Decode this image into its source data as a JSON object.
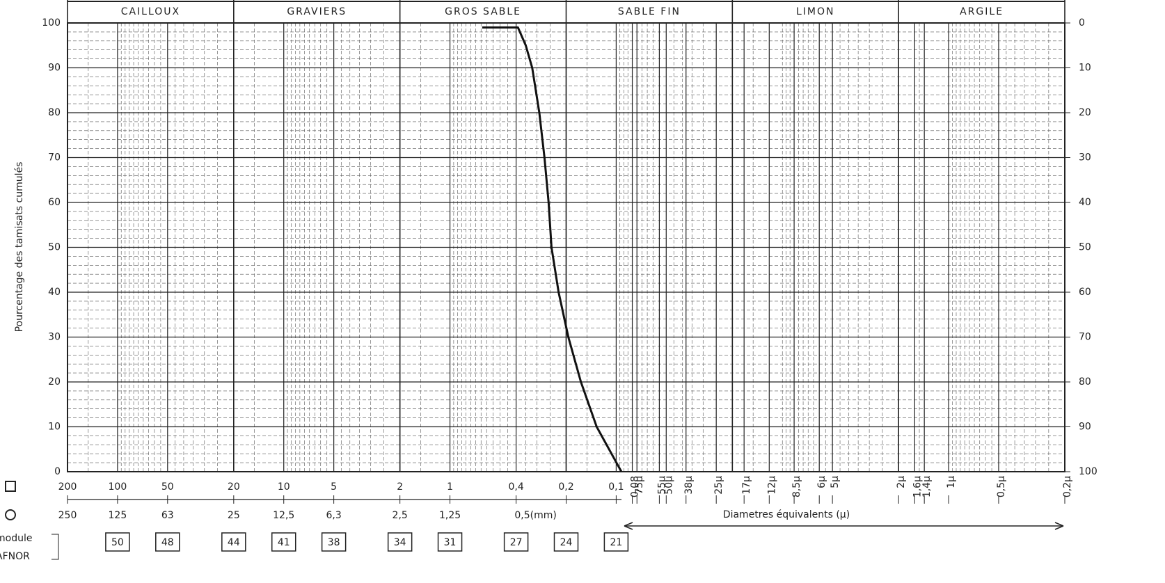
{
  "chart_data": {
    "type": "line",
    "y_label": "Pourcentage des tamisats cumulés",
    "x_label": "Diametres équivalents (µ)",
    "zones": [
      "CAILLOUX",
      "GRAVIERS",
      "GROS SABLE",
      "SABLE FIN",
      "LIMON",
      "ARGILE"
    ],
    "zone_bounds": [
      200,
      20,
      2,
      0.2,
      0.02,
      0.002,
      0.0002
    ],
    "x_scale": "log",
    "xlim": [
      200,
      0.0002
    ],
    "xticks": [
      200,
      100,
      50,
      20,
      10,
      5,
      2,
      1,
      {
        "value": 0.4,
        "label": "0,4"
      },
      {
        "value": 0.2,
        "label": "0,2"
      },
      {
        "value": 0.1,
        "label": "0,1"
      },
      {
        "value": 0.08,
        "label": "0,08"
      },
      {
        "value": 0.075,
        "label": "75µ"
      },
      {
        "value": 0.055,
        "label": "55µ"
      },
      {
        "value": 0.05,
        "label": "50µ"
      },
      {
        "value": 0.038,
        "label": "38µ"
      },
      {
        "value": 0.025,
        "label": "25µ"
      },
      {
        "value": 0.017,
        "label": "17µ"
      },
      {
        "value": 0.012,
        "label": "12µ"
      },
      {
        "value": 0.0085,
        "label": "8,5µ"
      },
      {
        "value": 0.006,
        "label": "6µ"
      },
      {
        "value": 0.005,
        "label": "5µ"
      },
      {
        "value": 0.002,
        "label": "2µ"
      },
      {
        "value": 0.0016,
        "label": "1,6µ"
      },
      {
        "value": 0.0014,
        "label": "1,4µ"
      },
      {
        "value": 0.001,
        "label": "1µ"
      },
      {
        "value": 0.0005,
        "label": "0,5µ"
      },
      {
        "value": 0.0002,
        "label": "0,2µ"
      }
    ],
    "round_sieve_labels": [
      "250",
      "125",
      "63",
      "25",
      "12,5",
      "6,3",
      "2,5",
      "1,25",
      "0,5(mm)"
    ],
    "module_title": [
      "module",
      "AFNOR"
    ],
    "modules": [
      50,
      48,
      44,
      41,
      38,
      34,
      31,
      27,
      24,
      21
    ],
    "ylim": [
      0,
      100
    ],
    "yticks": [
      0,
      10,
      20,
      30,
      40,
      50,
      60,
      70,
      80,
      90,
      100
    ],
    "y2lim": [
      100,
      0
    ],
    "y2ticks": [
      0,
      10,
      20,
      30,
      40,
      50,
      60,
      70,
      80,
      90,
      100
    ],
    "grid": true,
    "x": [
      0.64,
      0.39,
      0.35,
      0.32,
      0.29,
      0.27,
      0.255,
      0.245,
      0.222,
      0.194,
      0.163,
      0.131,
      0.093
    ],
    "series": [
      {
        "name": "",
        "color": "#111111",
        "values": [
          99,
          99,
          95,
          90,
          80,
          70,
          60,
          50,
          40,
          30,
          20,
          10,
          0
        ]
      }
    ]
  }
}
